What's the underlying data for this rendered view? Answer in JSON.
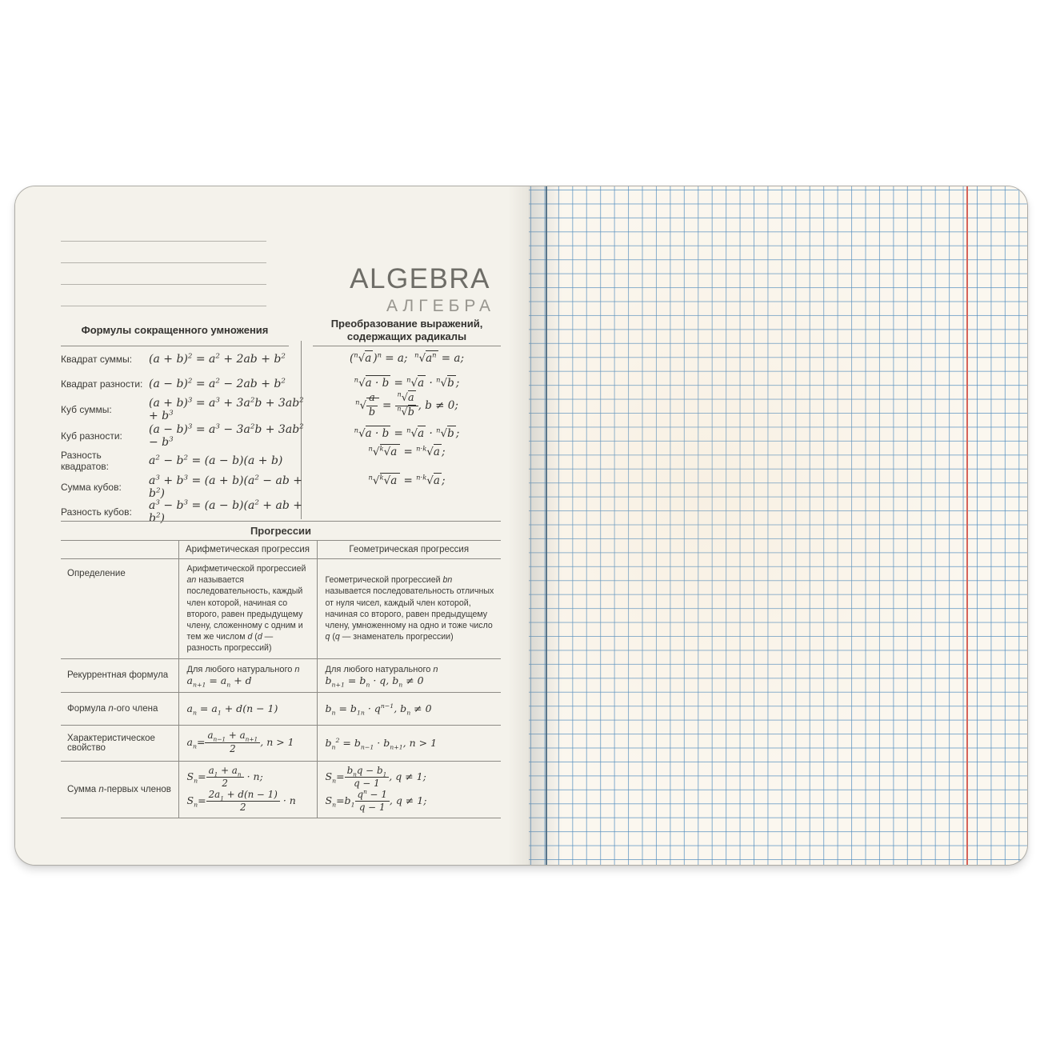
{
  "colors": {
    "canvas_bg": "#ffffff",
    "left_paper": "#f4f2eb",
    "right_paper": "#fbf7ef",
    "grid_line": "#6fa3cc",
    "margin_line": "#d6635a",
    "rule_line": "#8d8b85",
    "text_dark": "#3b3a36",
    "brand_title_color": "#6e6d67",
    "brand_subtitle_color": "#97958e"
  },
  "brand": {
    "title": "ALGEBRA",
    "subtitle": "АЛГЕБРА"
  },
  "left": {
    "mult": {
      "title": "Формулы сокращенного умножения",
      "rows": [
        {
          "label": "Квадрат суммы:",
          "formula": "(a + b)<sup>2</sup> = a<sup>2</sup> + 2ab + b<sup>2</sup>"
        },
        {
          "label": "Квадрат разности:",
          "formula": "(a − b)<sup>2</sup> = a<sup>2</sup> − 2ab + b<sup>2</sup>"
        },
        {
          "label": "Куб суммы:",
          "formula": "(a + b)<sup>3</sup> =  a<sup>3</sup> + 3a<sup>2</sup>b + 3ab<sup>2</sup> + b<sup>3</sup>"
        },
        {
          "label": "Куб разности:",
          "formula": "(a − b)<sup>3</sup> = a<sup>3</sup> − 3a<sup>2</sup>b + 3ab<sup>2</sup> − b<sup>3</sup>"
        },
        {
          "label": "Разность квадратов:",
          "formula": "a<sup>2</sup> − b<sup>2</sup> = (a − b)(a + b)"
        },
        {
          "label": "Сумма кубов:",
          "formula": "a<sup>3</sup> + b<sup>3</sup> = (a + b)(a<sup>2</sup> − ab + b<sup>2</sup>)"
        },
        {
          "label": "Разность кубов:",
          "formula": "a<sup>3</sup> − b<sup>3</sup> = (a − b)(a<sup>2</sup> + ab + b<sup>2</sup>)"
        }
      ]
    },
    "radicals": {
      "title1": "Преобразование выражений,",
      "title2": "содержащих радикалы",
      "formulas": [
        "(<sup>n</sup>√<span class=\"rad\">a</span>)<sup>n</sup> = a;&nbsp; <sup>n</sup>√<span class=\"rad\">a<sup>n</sup></span> = a;",
        "<sup>n</sup>√<span class=\"rad\">a · b</span> = <sup>n</sup>√<span class=\"rad\">a</span> · <sup>n</sup>√<span class=\"rad\">b</span>;",
        "<sup>n</sup>√<span class=\"rad\"><span class=\"fr\"><span class=\"nu\">a</span><span class=\"de\">b</span></span></span> = <span class=\"fr\"><span class=\"nu\"><sup>n</sup>√<span class=\"rad\">a</span></span><span class=\"de\"><sup>n</sup>√<span class=\"rad\">b</span></span></span>, b ≠ 0;",
        "<sup>n</sup>√<span class=\"rad\">a · b</span> = <sup>n</sup>√<span class=\"rad\">a</span> · <sup>n</sup>√<span class=\"rad\">b</span>;",
        "<sup>n</sup>√<span class=\"rad\"><sup>k</sup>√<span class=\"rad\">a</span></span> = <sup>n·k</sup>√<span class=\"rad\">a</span>;",
        "<sup>n</sup>√<span class=\"rad\"><sup>k</sup>√<span class=\"rad\">a</span></span> = <sup>n·k</sup>√<span class=\"rad\">a</span>;"
      ]
    },
    "progressions": {
      "title": "Прогрессии",
      "col_arith": "Арифметическая прогрессия",
      "col_geom": "Геометрическая прогрессия",
      "rows": [
        {
          "label": "Определение",
          "arith": "Арифметической прогрессией <i>an</i> называется последовательность, каждый член которой, начиная со второго, равен предыдущему члену, сложенному с одним и тем же числом <i>d</i> (<i>d</i> — разность прогрессий)",
          "geom": "Геометрической прогрессией <i>bn</i> называется последовательность отличных от нуля чисел, каждый член которой, начиная со второго, равен предыдущему члену, умноженному на одно и тоже число <i>q</i> (<i>q</i> — знаменатель прогрессии)"
        },
        {
          "label": "Рекуррентная формула",
          "arith": "<span class=\"small-note\">Для любого натурального <i>n</i></span><br><span class=\"m\">a<sub>n+1</sub> = a<sub>n</sub> + d</span>",
          "geom": "<span class=\"small-note\">Для любого натурального <i>n</i></span><br><span class=\"m\">b<sub>n+1</sub> = b<sub>n</sub> · q, b<sub>n</sub> ≠ 0</span>"
        },
        {
          "label": "Формула <i>n</i>-ого члена",
          "arith": "<span class=\"m\">a<sub>n</sub> = a<sub>1</sub> + d(n − 1)</span>",
          "geom": "<span class=\"m\">b<sub>n</sub> = b<sub>1n</sub> · q<sup>n−1</sup>, b<sub>n</sub> ≠ 0</span>"
        },
        {
          "label": "Характеристическое свойство",
          "arith": "<span class=\"m\">a<sub>n</sub>=<span class=\"fr\"><span class=\"nu\">a<sub>n−1</sub> + a<sub>n+1</sub></span><span class=\"de\">2</span></span>, n &gt; 1</span>",
          "geom": "<span class=\"m\">b<sub>n</sub><sup>2</sup> = b<sub>n−1</sub> · b<sub>n+1</sub>, n &gt; 1</span>"
        },
        {
          "label": "Сумма <i>n</i>-первых членов",
          "arith": "<span class=\"m\">S<sub>n</sub>=<span class=\"fr\"><span class=\"nu\">a<sub>1</sub> + a<sub>n</sub></span><span class=\"de\">2</span></span> · n;<br>S<sub>n</sub>=<span class=\"fr\"><span class=\"nu\">2a<sub>1</sub> + d(n − 1)</span><span class=\"de\">2</span></span> · n</span>",
          "geom": "<span class=\"m\">S<sub>n</sub>=<span class=\"fr\"><span class=\"nu\">b<sub>n</sub>q − b<sub>1</sub></span><span class=\"de\">q − 1</span></span>, q ≠ 1;<br>S<sub>n</sub>=b<sub>1</sub><span class=\"fr\"><span class=\"nu\">q<sup>n</sup> − 1</span><span class=\"de\">q − 1</span></span>, q ≠ 1;</span>"
        }
      ]
    }
  },
  "right": {
    "paper_type": "squared-grid",
    "has_margin_line": true
  }
}
